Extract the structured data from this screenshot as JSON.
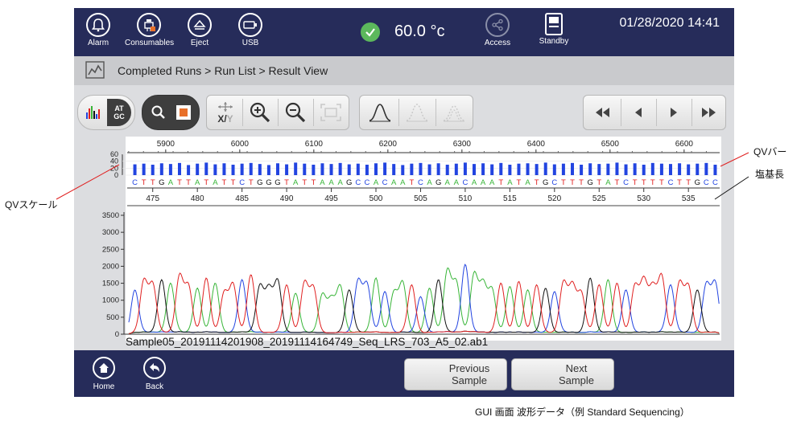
{
  "topbar": {
    "buttons": [
      {
        "label": "Alarm",
        "icon": "bell-icon"
      },
      {
        "label": "Consumables",
        "icon": "consumables-icon"
      },
      {
        "label": "Eject",
        "icon": "eject-icon"
      },
      {
        "label": "USB",
        "icon": "usb-icon"
      }
    ],
    "temperature": "60.0 °c",
    "access_label": "Access",
    "standby_label": "Standby",
    "datetime": "01/28/2020 14:41",
    "colors": {
      "bar": "#262c5a",
      "ok": "#5cb85c"
    }
  },
  "breadcrumb": "Completed Runs > Run List > Result View",
  "toolbar": {
    "view_toggle_label": "ATGC",
    "xy_label_x": "X/",
    "xy_label_y": "Y"
  },
  "chart_data": {
    "type": "line",
    "scan_axis_ticks": [
      5900,
      6000,
      6100,
      6200,
      6300,
      6400,
      6500,
      6600
    ],
    "qv_scale_ticks": [
      0,
      20,
      40,
      60
    ],
    "base_position_ticks": [
      475,
      480,
      485,
      490,
      495,
      500,
      505,
      510,
      515,
      520,
      525,
      530,
      535
    ],
    "bases": "CTTGATTATATTCTGGGTATTAAAGCCACAATCAGAACAAATATATGCTTTGTATCTTTTCTTGCC",
    "qv_values": [
      31,
      33,
      30,
      34,
      32,
      35,
      29,
      33,
      36,
      31,
      34,
      30,
      33,
      35,
      32,
      29,
      34,
      31,
      36,
      33,
      30,
      34,
      32,
      35,
      31,
      33,
      30,
      34,
      36,
      32,
      29,
      33,
      35,
      31,
      34,
      30,
      33,
      36,
      32,
      34,
      31,
      35,
      30,
      33,
      34,
      32,
      36,
      31,
      33,
      35,
      30,
      34,
      32,
      33,
      36,
      31,
      34,
      30,
      35,
      33,
      32,
      34,
      31,
      33,
      35,
      30
    ],
    "y_ticks": [
      0,
      500,
      1000,
      1500,
      2000,
      2500,
      3000,
      3500
    ],
    "ylim": [
      0,
      3500
    ],
    "base_colors": {
      "A": "#38b538",
      "C": "#2244e0",
      "G": "#111111",
      "T": "#e02020"
    }
  },
  "filename": "Sample05_20191114201908_20191114164749_Seq_LRS_703_A5_02.ab1",
  "bottombar": {
    "home_label": "Home",
    "back_label": "Back",
    "previous_sample": "Previous Sample",
    "next_sample": "Next Sample"
  },
  "annotations": {
    "qv_bar": "QVバー",
    "base_length": "塩基長",
    "qv_scale": "QVスケール",
    "caption": "GUI 画面 波形データ（例 Standard Sequencing）"
  }
}
